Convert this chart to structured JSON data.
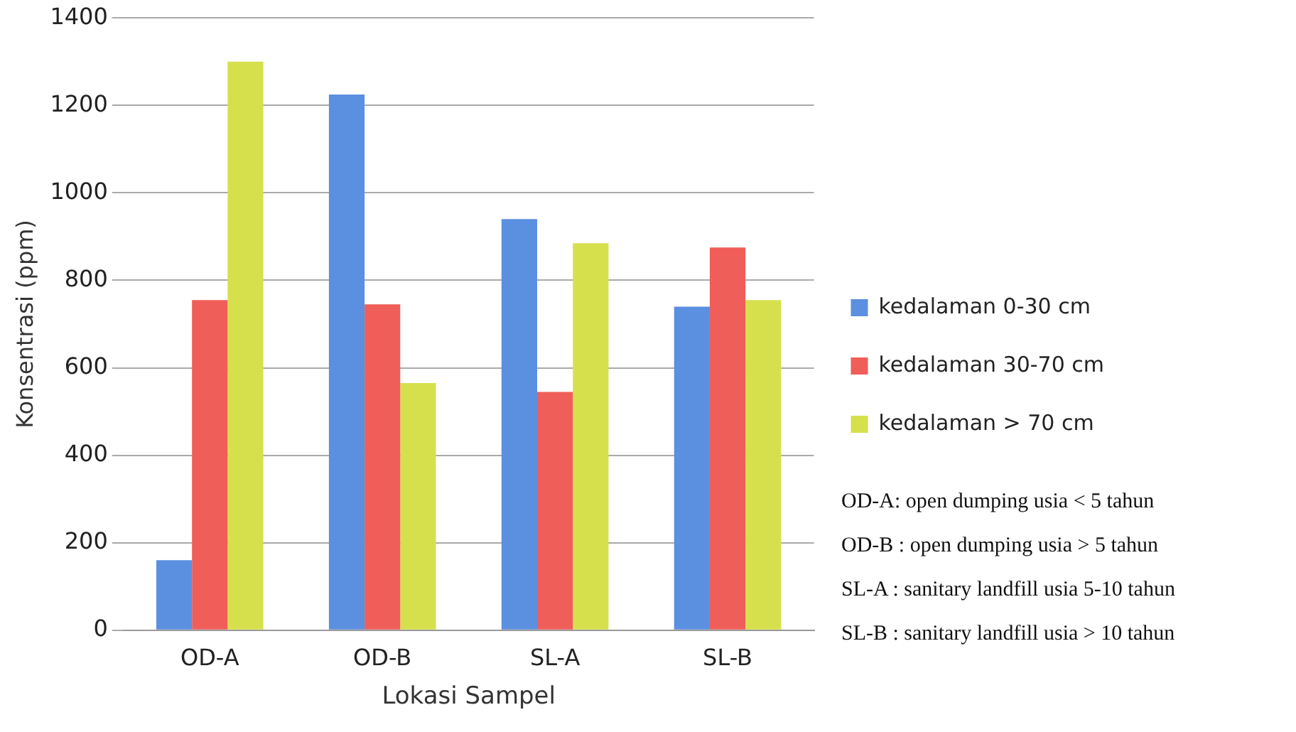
{
  "chart_data": {
    "type": "bar",
    "xlabel": "Lokasi Sampel",
    "ylabel": "Konsentrasi (ppm)",
    "categories": [
      "OD-A",
      "OD-B",
      "SL-A",
      "SL-B"
    ],
    "series": [
      {
        "name": "kedalaman 0-30 cm",
        "color": "#5b8fe0",
        "values": [
          160,
          1225,
          940,
          740
        ]
      },
      {
        "name": "kedalaman 30-70 cm",
        "color": "#ef5e58",
        "values": [
          755,
          745,
          545,
          875
        ]
      },
      {
        "name": "kedalaman > 70 cm",
        "color": "#d6e04c",
        "values": [
          1300,
          565,
          885,
          755
        ]
      }
    ],
    "ylim": [
      0,
      1400
    ],
    "yticks": [
      0,
      200,
      400,
      600,
      800,
      1000,
      1200,
      1400
    ],
    "grid": "y",
    "legend": "right",
    "annotations": [
      "OD-A: open dumping usia < 5 tahun",
      "OD-B : open dumping usia > 5 tahun",
      "SL-A : sanitary landfill usia 5-10 tahun",
      "SL-B : sanitary landfill usia > 10 tahun"
    ]
  }
}
